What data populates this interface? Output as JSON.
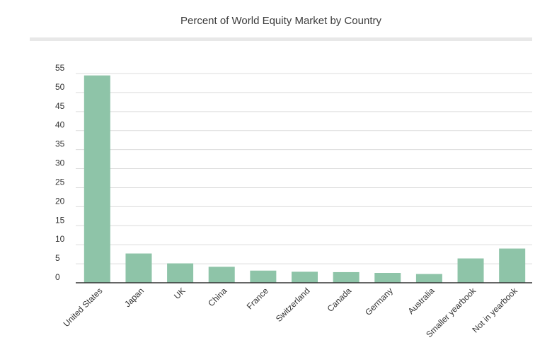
{
  "chart_data": {
    "type": "bar",
    "title": "Percent of World Equity Market by Country",
    "xlabel": "",
    "ylabel": "",
    "ylim": [
      0,
      55
    ],
    "yticks": [
      0,
      5,
      10,
      15,
      20,
      25,
      30,
      35,
      40,
      45,
      50,
      55
    ],
    "grid": true,
    "legend": "none",
    "bar_color": "#8ec4a8",
    "categories": [
      "United States",
      "Japan",
      "UK",
      "China",
      "France",
      "Switzerland",
      "Canada",
      "Germany",
      "Australia",
      "Smaller yearbook",
      "Not in yearbook"
    ],
    "values": [
      54.5,
      7.7,
      5.1,
      4.2,
      3.2,
      2.9,
      2.8,
      2.6,
      2.3,
      6.4,
      9.0
    ]
  }
}
